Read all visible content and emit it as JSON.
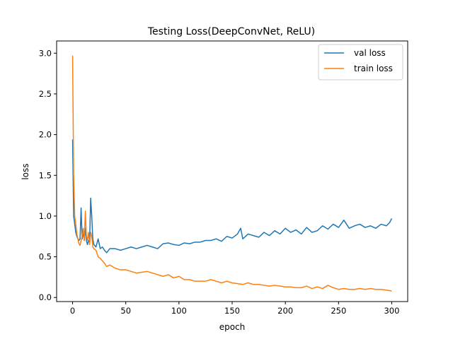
{
  "chart_data": {
    "type": "line",
    "title": "Testing Loss(DeepConvNet, ReLU)",
    "xlabel": "epoch",
    "ylabel": "loss",
    "xlim": [
      -15,
      315
    ],
    "ylim": [
      -0.05,
      3.15
    ],
    "xticks": [
      0,
      50,
      100,
      150,
      200,
      250,
      300
    ],
    "yticks": [
      0.0,
      0.5,
      1.0,
      1.5,
      2.0,
      2.5,
      3.0
    ],
    "xtick_labels": [
      "0",
      "50",
      "100",
      "150",
      "200",
      "250",
      "300"
    ],
    "ytick_labels": [
      "0.0",
      "0.5",
      "1.0",
      "1.5",
      "2.0",
      "2.5",
      "3.0"
    ],
    "grid": false,
    "legend_position": "top-right",
    "series": [
      {
        "name": "val loss",
        "color": "#1f77b4",
        "x": [
          0,
          1,
          2,
          3,
          4,
          5,
          6,
          7,
          8,
          9,
          10,
          11,
          12,
          13,
          14,
          15,
          16,
          17,
          18,
          19,
          20,
          22,
          24,
          26,
          28,
          30,
          32,
          35,
          40,
          45,
          50,
          55,
          60,
          65,
          70,
          75,
          80,
          85,
          90,
          95,
          100,
          105,
          110,
          115,
          120,
          125,
          130,
          135,
          140,
          145,
          150,
          155,
          158,
          160,
          165,
          170,
          175,
          180,
          185,
          190,
          195,
          200,
          205,
          210,
          215,
          220,
          225,
          230,
          235,
          240,
          245,
          250,
          255,
          260,
          265,
          270,
          275,
          280,
          285,
          290,
          295,
          298,
          300
        ],
        "y": [
          1.94,
          1.0,
          0.9,
          0.8,
          0.75,
          0.72,
          0.7,
          0.72,
          1.1,
          0.72,
          0.8,
          0.7,
          0.85,
          0.7,
          0.65,
          0.7,
          0.68,
          1.22,
          1.0,
          0.72,
          0.65,
          0.62,
          0.72,
          0.6,
          0.62,
          0.58,
          0.55,
          0.6,
          0.6,
          0.58,
          0.6,
          0.62,
          0.6,
          0.62,
          0.64,
          0.62,
          0.6,
          0.66,
          0.67,
          0.65,
          0.64,
          0.67,
          0.66,
          0.68,
          0.68,
          0.7,
          0.7,
          0.72,
          0.69,
          0.75,
          0.73,
          0.78,
          0.85,
          0.72,
          0.78,
          0.76,
          0.74,
          0.8,
          0.76,
          0.82,
          0.78,
          0.85,
          0.8,
          0.83,
          0.78,
          0.86,
          0.8,
          0.82,
          0.88,
          0.84,
          0.9,
          0.86,
          0.95,
          0.85,
          0.88,
          0.9,
          0.86,
          0.88,
          0.85,
          0.9,
          0.88,
          0.92,
          0.97
        ]
      },
      {
        "name": "train loss",
        "color": "#ff7f0e",
        "x": [
          0,
          1,
          2,
          3,
          4,
          5,
          6,
          7,
          8,
          9,
          10,
          11,
          12,
          13,
          14,
          15,
          16,
          17,
          18,
          19,
          20,
          22,
          24,
          26,
          28,
          30,
          32,
          35,
          40,
          45,
          50,
          55,
          60,
          65,
          70,
          75,
          80,
          85,
          90,
          95,
          100,
          105,
          110,
          115,
          120,
          125,
          130,
          135,
          140,
          145,
          150,
          155,
          160,
          165,
          170,
          175,
          180,
          185,
          190,
          195,
          200,
          205,
          210,
          215,
          220,
          225,
          230,
          235,
          240,
          245,
          250,
          255,
          260,
          265,
          270,
          275,
          280,
          285,
          290,
          295,
          300
        ],
        "y": [
          2.97,
          1.5,
          1.0,
          0.9,
          0.78,
          0.72,
          0.66,
          0.64,
          0.7,
          0.75,
          0.85,
          0.7,
          1.06,
          0.75,
          0.7,
          0.8,
          0.65,
          0.8,
          0.75,
          0.62,
          0.6,
          0.58,
          0.5,
          0.48,
          0.45,
          0.42,
          0.38,
          0.4,
          0.36,
          0.34,
          0.34,
          0.32,
          0.3,
          0.31,
          0.32,
          0.3,
          0.28,
          0.26,
          0.28,
          0.24,
          0.26,
          0.22,
          0.22,
          0.2,
          0.2,
          0.2,
          0.22,
          0.2,
          0.18,
          0.2,
          0.18,
          0.17,
          0.16,
          0.18,
          0.16,
          0.16,
          0.15,
          0.14,
          0.15,
          0.14,
          0.13,
          0.13,
          0.12,
          0.12,
          0.14,
          0.11,
          0.13,
          0.11,
          0.15,
          0.12,
          0.1,
          0.11,
          0.1,
          0.1,
          0.11,
          0.1,
          0.11,
          0.1,
          0.1,
          0.09,
          0.08
        ]
      }
    ]
  }
}
